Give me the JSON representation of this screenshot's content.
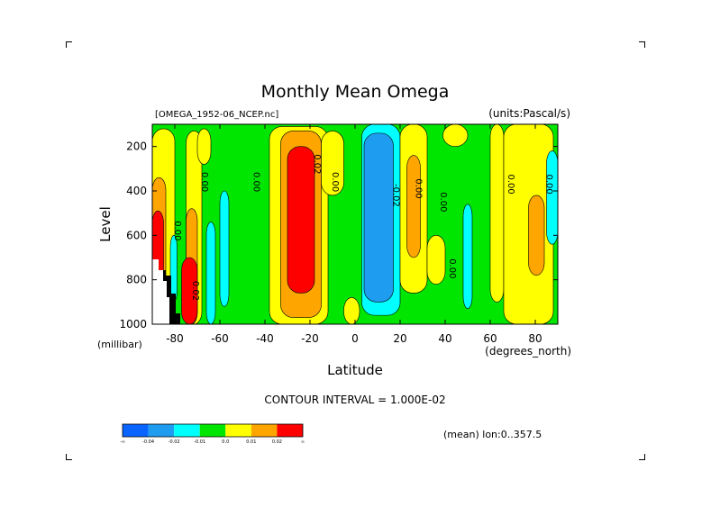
{
  "chart_data": {
    "type": "heatmap",
    "title": "Monthly Mean Omega",
    "subtitle_left": "[OMEGA_1952-06_NCEP.nc]",
    "subtitle_right": "(units:Pascal/s)",
    "xlabel": "Latitude",
    "x_unit": "(degrees_north)",
    "ylabel": "Level",
    "y_unit": "(millibar)",
    "x_range": [
      -90,
      90
    ],
    "y_range": [
      1000,
      100
    ],
    "y_reversed": true,
    "x_ticks": [
      {
        "v": -80,
        "label": "-80"
      },
      {
        "v": -60,
        "label": "-60"
      },
      {
        "v": -40,
        "label": "-40"
      },
      {
        "v": -20,
        "label": "-20"
      },
      {
        "v": 0,
        "label": "0"
      },
      {
        "v": 20,
        "label": "20"
      },
      {
        "v": 40,
        "label": "40"
      },
      {
        "v": 60,
        "label": "60"
      },
      {
        "v": 80,
        "label": "80"
      }
    ],
    "y_ticks": [
      {
        "v": 200,
        "label": "200"
      },
      {
        "v": 400,
        "label": "400"
      },
      {
        "v": 600,
        "label": "600"
      },
      {
        "v": 800,
        "label": "800"
      },
      {
        "v": 1000,
        "label": "1000"
      }
    ],
    "contour_interval_text": "CONTOUR INTERVAL = 1.000E-02",
    "mean_note": "(mean) lon:0..357.5",
    "colorbar": [
      {
        "label": "-∞",
        "color": "#0a64ff"
      },
      {
        "label": "-0.04",
        "color": "#1e9cf0"
      },
      {
        "label": "-0.02",
        "color": "#00ffff"
      },
      {
        "label": "-0.01",
        "color": "#00e600"
      },
      {
        "label": "0.0",
        "color": "#ffff00"
      },
      {
        "label": "0.01",
        "color": "#ffa500"
      },
      {
        "label": "0.02",
        "color": "#ff0000"
      },
      {
        "label": "∞",
        "color": ""
      }
    ],
    "background_field_color": "#00e600",
    "regions": [
      {
        "color": "#ffff00",
        "lat": [
          -90,
          -80
        ],
        "lev": [
          1000,
          120
        ]
      },
      {
        "color": "#ffff00",
        "lat": [
          -75,
          -68
        ],
        "lev": [
          1000,
          130
        ]
      },
      {
        "color": "#ffa500",
        "lat": [
          -90,
          -84
        ],
        "lev": [
          1000,
          340
        ]
      },
      {
        "color": "#ff0000",
        "lat": [
          -90,
          -85
        ],
        "lev": [
          800,
          490
        ]
      },
      {
        "color": "#ffa500",
        "lat": [
          -75,
          -70
        ],
        "lev": [
          1000,
          480
        ]
      },
      {
        "color": "#ff0000",
        "lat": [
          -77,
          -70
        ],
        "lev": [
          1000,
          700
        ]
      },
      {
        "color": "#00ffff",
        "lat": [
          -66,
          -62
        ],
        "lev": [
          1000,
          540
        ]
      },
      {
        "color": "#00ffff",
        "lat": [
          -60,
          -56
        ],
        "lev": [
          920,
          400
        ]
      },
      {
        "color": "#00ffff",
        "lat": [
          -82,
          -79
        ],
        "lev": [
          900,
          600
        ]
      },
      {
        "color": "#ffff00",
        "lat": [
          -38,
          -12
        ],
        "lev": [
          1000,
          110
        ]
      },
      {
        "color": "#ffff00",
        "lat": [
          -15,
          -5
        ],
        "lev": [
          420,
          130
        ]
      },
      {
        "color": "#ffa500",
        "lat": [
          -33,
          -15
        ],
        "lev": [
          970,
          130
        ]
      },
      {
        "color": "#ff0000",
        "lat": [
          -30,
          -18
        ],
        "lev": [
          860,
          200
        ]
      },
      {
        "color": "#00ffff",
        "lat": [
          3,
          20
        ],
        "lev": [
          960,
          100
        ]
      },
      {
        "color": "#1e9cf0",
        "lat": [
          4,
          17
        ],
        "lev": [
          900,
          140
        ]
      },
      {
        "color": "#ffff00",
        "lat": [
          20,
          32
        ],
        "lev": [
          860,
          100
        ]
      },
      {
        "color": "#ffa500",
        "lat": [
          23,
          29
        ],
        "lev": [
          700,
          240
        ]
      },
      {
        "color": "#ffff00",
        "lat": [
          32,
          40
        ],
        "lev": [
          820,
          600
        ]
      },
      {
        "color": "#ffff00",
        "lat": [
          39,
          50
        ],
        "lev": [
          200,
          100
        ]
      },
      {
        "color": "#00ffff",
        "lat": [
          48,
          52
        ],
        "lev": [
          930,
          460
        ]
      },
      {
        "color": "#ffff00",
        "lat": [
          60,
          66
        ],
        "lev": [
          900,
          100
        ]
      },
      {
        "color": "#ffff00",
        "lat": [
          66,
          88
        ],
        "lev": [
          1000,
          100
        ]
      },
      {
        "color": "#ffa500",
        "lat": [
          77,
          84
        ],
        "lev": [
          780,
          420
        ]
      },
      {
        "color": "#ffff00",
        "lat": [
          -5,
          2
        ],
        "lev": [
          1000,
          880
        ]
      },
      {
        "color": "#ffff00",
        "lat": [
          -70,
          -64
        ],
        "lev": [
          280,
          120
        ]
      },
      {
        "color": "#00ffff",
        "lat": [
          85,
          90
        ],
        "lev": [
          640,
          220
        ]
      }
    ],
    "contour_labels": [
      {
        "lat": -80,
        "lev": 580,
        "label": "0.00"
      },
      {
        "lat": -68,
        "lev": 360,
        "label": "0.00"
      },
      {
        "lat": -45,
        "lev": 360,
        "label": "0.00"
      },
      {
        "lat": -18,
        "lev": 280,
        "label": "0.02"
      },
      {
        "lat": -10,
        "lev": 360,
        "label": "0.00"
      },
      {
        "lat": 17,
        "lev": 420,
        "label": "-0.02"
      },
      {
        "lat": 27,
        "lev": 390,
        "label": "0.00"
      },
      {
        "lat": 38,
        "lev": 450,
        "label": "0.00"
      },
      {
        "lat": 42,
        "lev": 750,
        "label": "0.00"
      },
      {
        "lat": -72,
        "lev": 850,
        "label": "0.02"
      },
      {
        "lat": 68,
        "lev": 370,
        "label": "0.00"
      },
      {
        "lat": 85,
        "lev": 370,
        "label": "0.00"
      }
    ]
  }
}
